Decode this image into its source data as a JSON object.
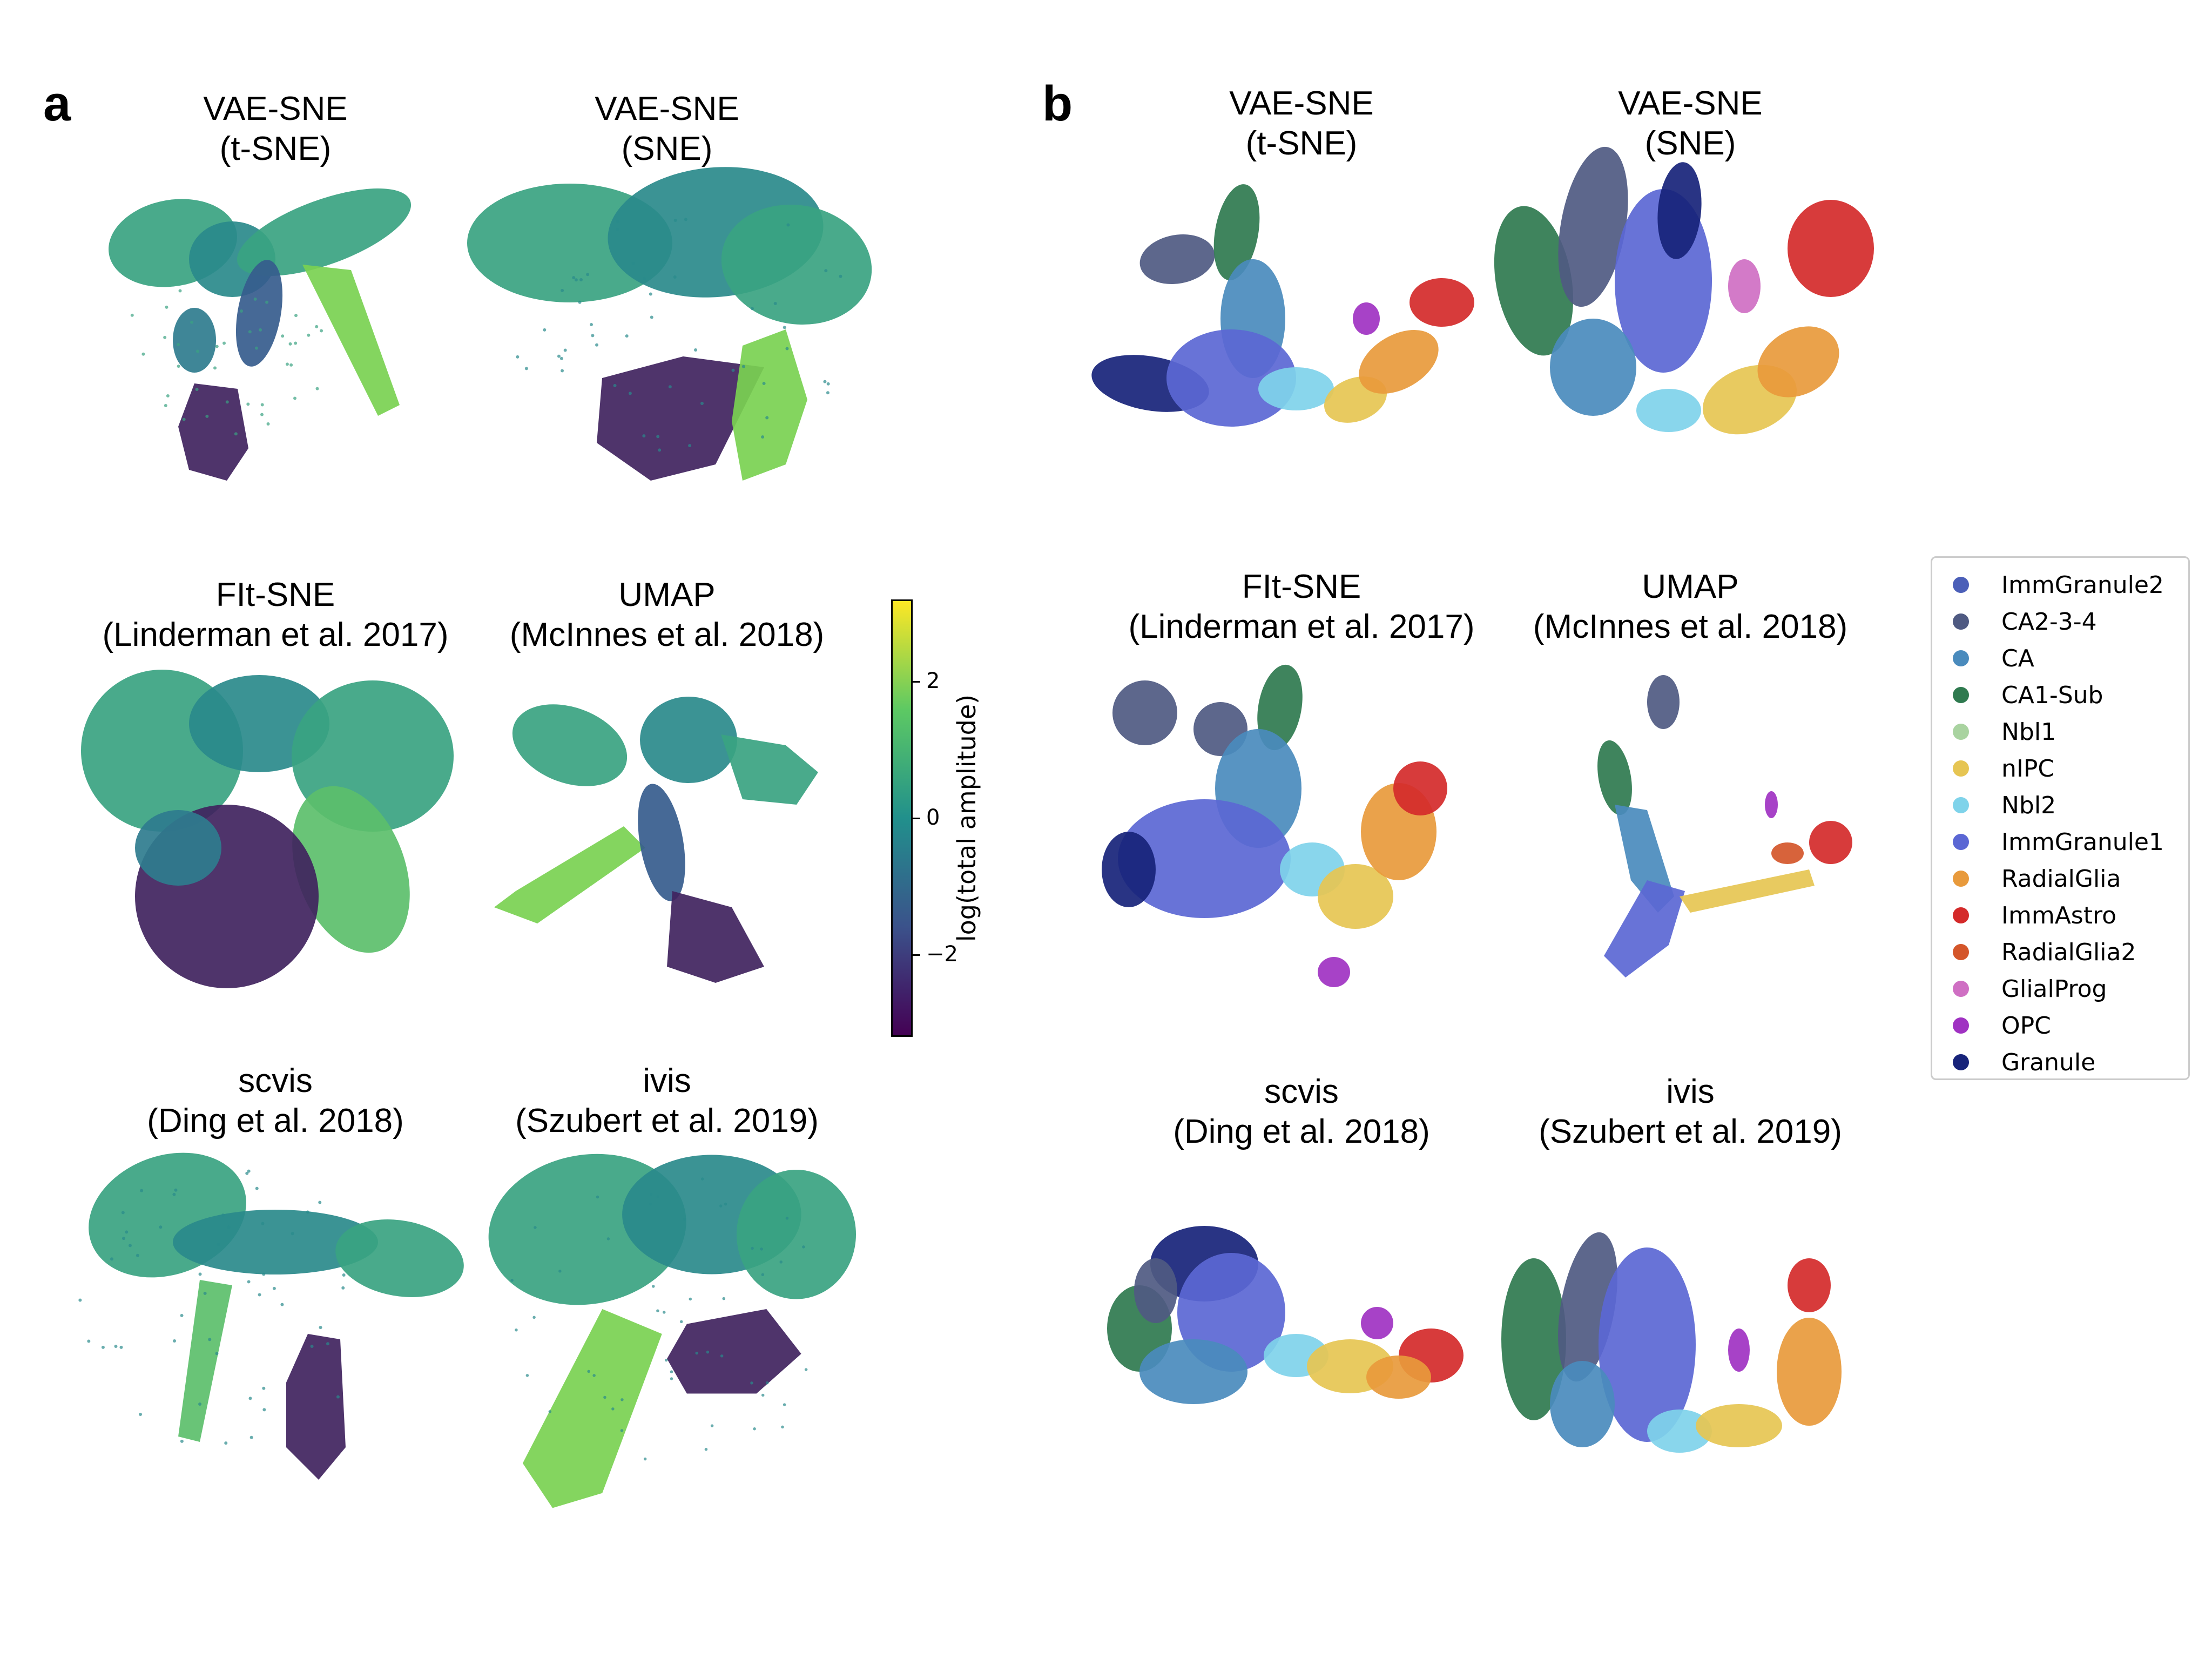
{
  "panels": [
    {
      "letter": "a"
    },
    {
      "letter": "b"
    }
  ],
  "methods": [
    {
      "line1": "VAE-SNE",
      "line2": "(t-SNE)"
    },
    {
      "line1": "VAE-SNE",
      "line2": "(SNE)"
    },
    {
      "line1": "FIt-SNE",
      "line2": "(Linderman et al. 2017)"
    },
    {
      "line1": "UMAP",
      "line2": "(McInnes et al. 2018)"
    },
    {
      "line1": "scvis",
      "line2": "(Ding et al. 2018)"
    },
    {
      "line1": "ivis",
      "line2": "(Szubert et al. 2019)"
    }
  ],
  "colorbar": {
    "label": "log(total amplitude)",
    "range": [
      -3.2,
      3.2
    ],
    "ticks": [
      {
        "value": 2,
        "label": "2"
      },
      {
        "value": 0,
        "label": "0"
      },
      {
        "value": -2,
        "label": "−2"
      }
    ],
    "colormap": [
      "#440154",
      "#3b528b",
      "#21908c",
      "#5dc963",
      "#fde725"
    ]
  },
  "chart_data": [
    {
      "type": "scatter",
      "panel": "a",
      "color_encoding": "log(total amplitude)",
      "colormap": "viridis",
      "subplots": [
        "VAE-SNE (t-SNE)",
        "VAE-SNE (SNE)",
        "FIt-SNE (Linderman et al. 2017)",
        "UMAP (McInnes et al. 2018)",
        "scvis (Ding et al. 2018)",
        "ivis (Szubert et al. 2019)"
      ]
    },
    {
      "type": "scatter",
      "panel": "b",
      "color_encoding": "cell type",
      "subplots": [
        "VAE-SNE (t-SNE)",
        "VAE-SNE (SNE)",
        "FIt-SNE (Linderman et al. 2017)",
        "UMAP (McInnes et al. 2018)",
        "scvis (Ding et al. 2018)",
        "ivis (Szubert et al. 2019)"
      ],
      "legend": [
        {
          "name": "ImmGranule2",
          "color": "#4b5fb8"
        },
        {
          "name": "CA2-3-4",
          "color": "#4f5a82"
        },
        {
          "name": "CA",
          "color": "#4a8bbd"
        },
        {
          "name": "CA1-Sub",
          "color": "#2f7a4f"
        },
        {
          "name": "Nbl1",
          "color": "#a9d3a0"
        },
        {
          "name": "nIPC",
          "color": "#e6c553"
        },
        {
          "name": "Nbl2",
          "color": "#7fd3ea"
        },
        {
          "name": "ImmGranule1",
          "color": "#5b67d4"
        },
        {
          "name": "RadialGlia",
          "color": "#e89a3c"
        },
        {
          "name": "ImmAstro",
          "color": "#d42a2a"
        },
        {
          "name": "RadialGlia2",
          "color": "#d4562a"
        },
        {
          "name": "GlialProg",
          "color": "#cf6fc3"
        },
        {
          "name": "OPC",
          "color": "#a032c2"
        },
        {
          "name": "Granule",
          "color": "#17237a"
        }
      ],
      "legend_position": "right"
    }
  ]
}
